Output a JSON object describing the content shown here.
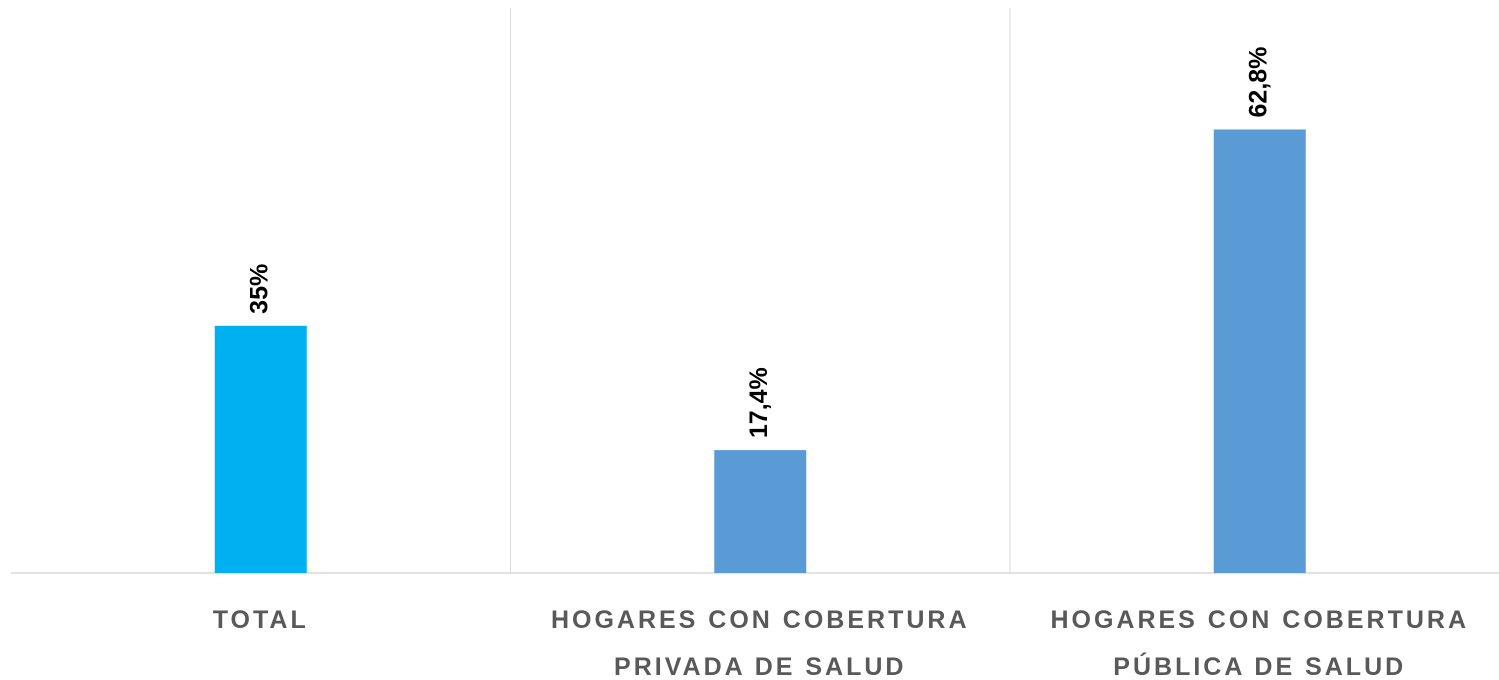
{
  "chart_data": {
    "type": "bar",
    "categories": [
      "TOTAL",
      "HOGARES CON COBERTURA PRIVADA DE SALUD",
      "HOGARES CON COBERTURA PÚBLICA DE SALUD"
    ],
    "values": [
      35,
      17.4,
      62.8
    ],
    "value_labels": [
      "35%",
      "17,4%",
      "62,8%"
    ],
    "colors": [
      "#00b0f0",
      "#5b9bd5",
      "#5b9bd5"
    ],
    "ylim": [
      0,
      80
    ]
  }
}
